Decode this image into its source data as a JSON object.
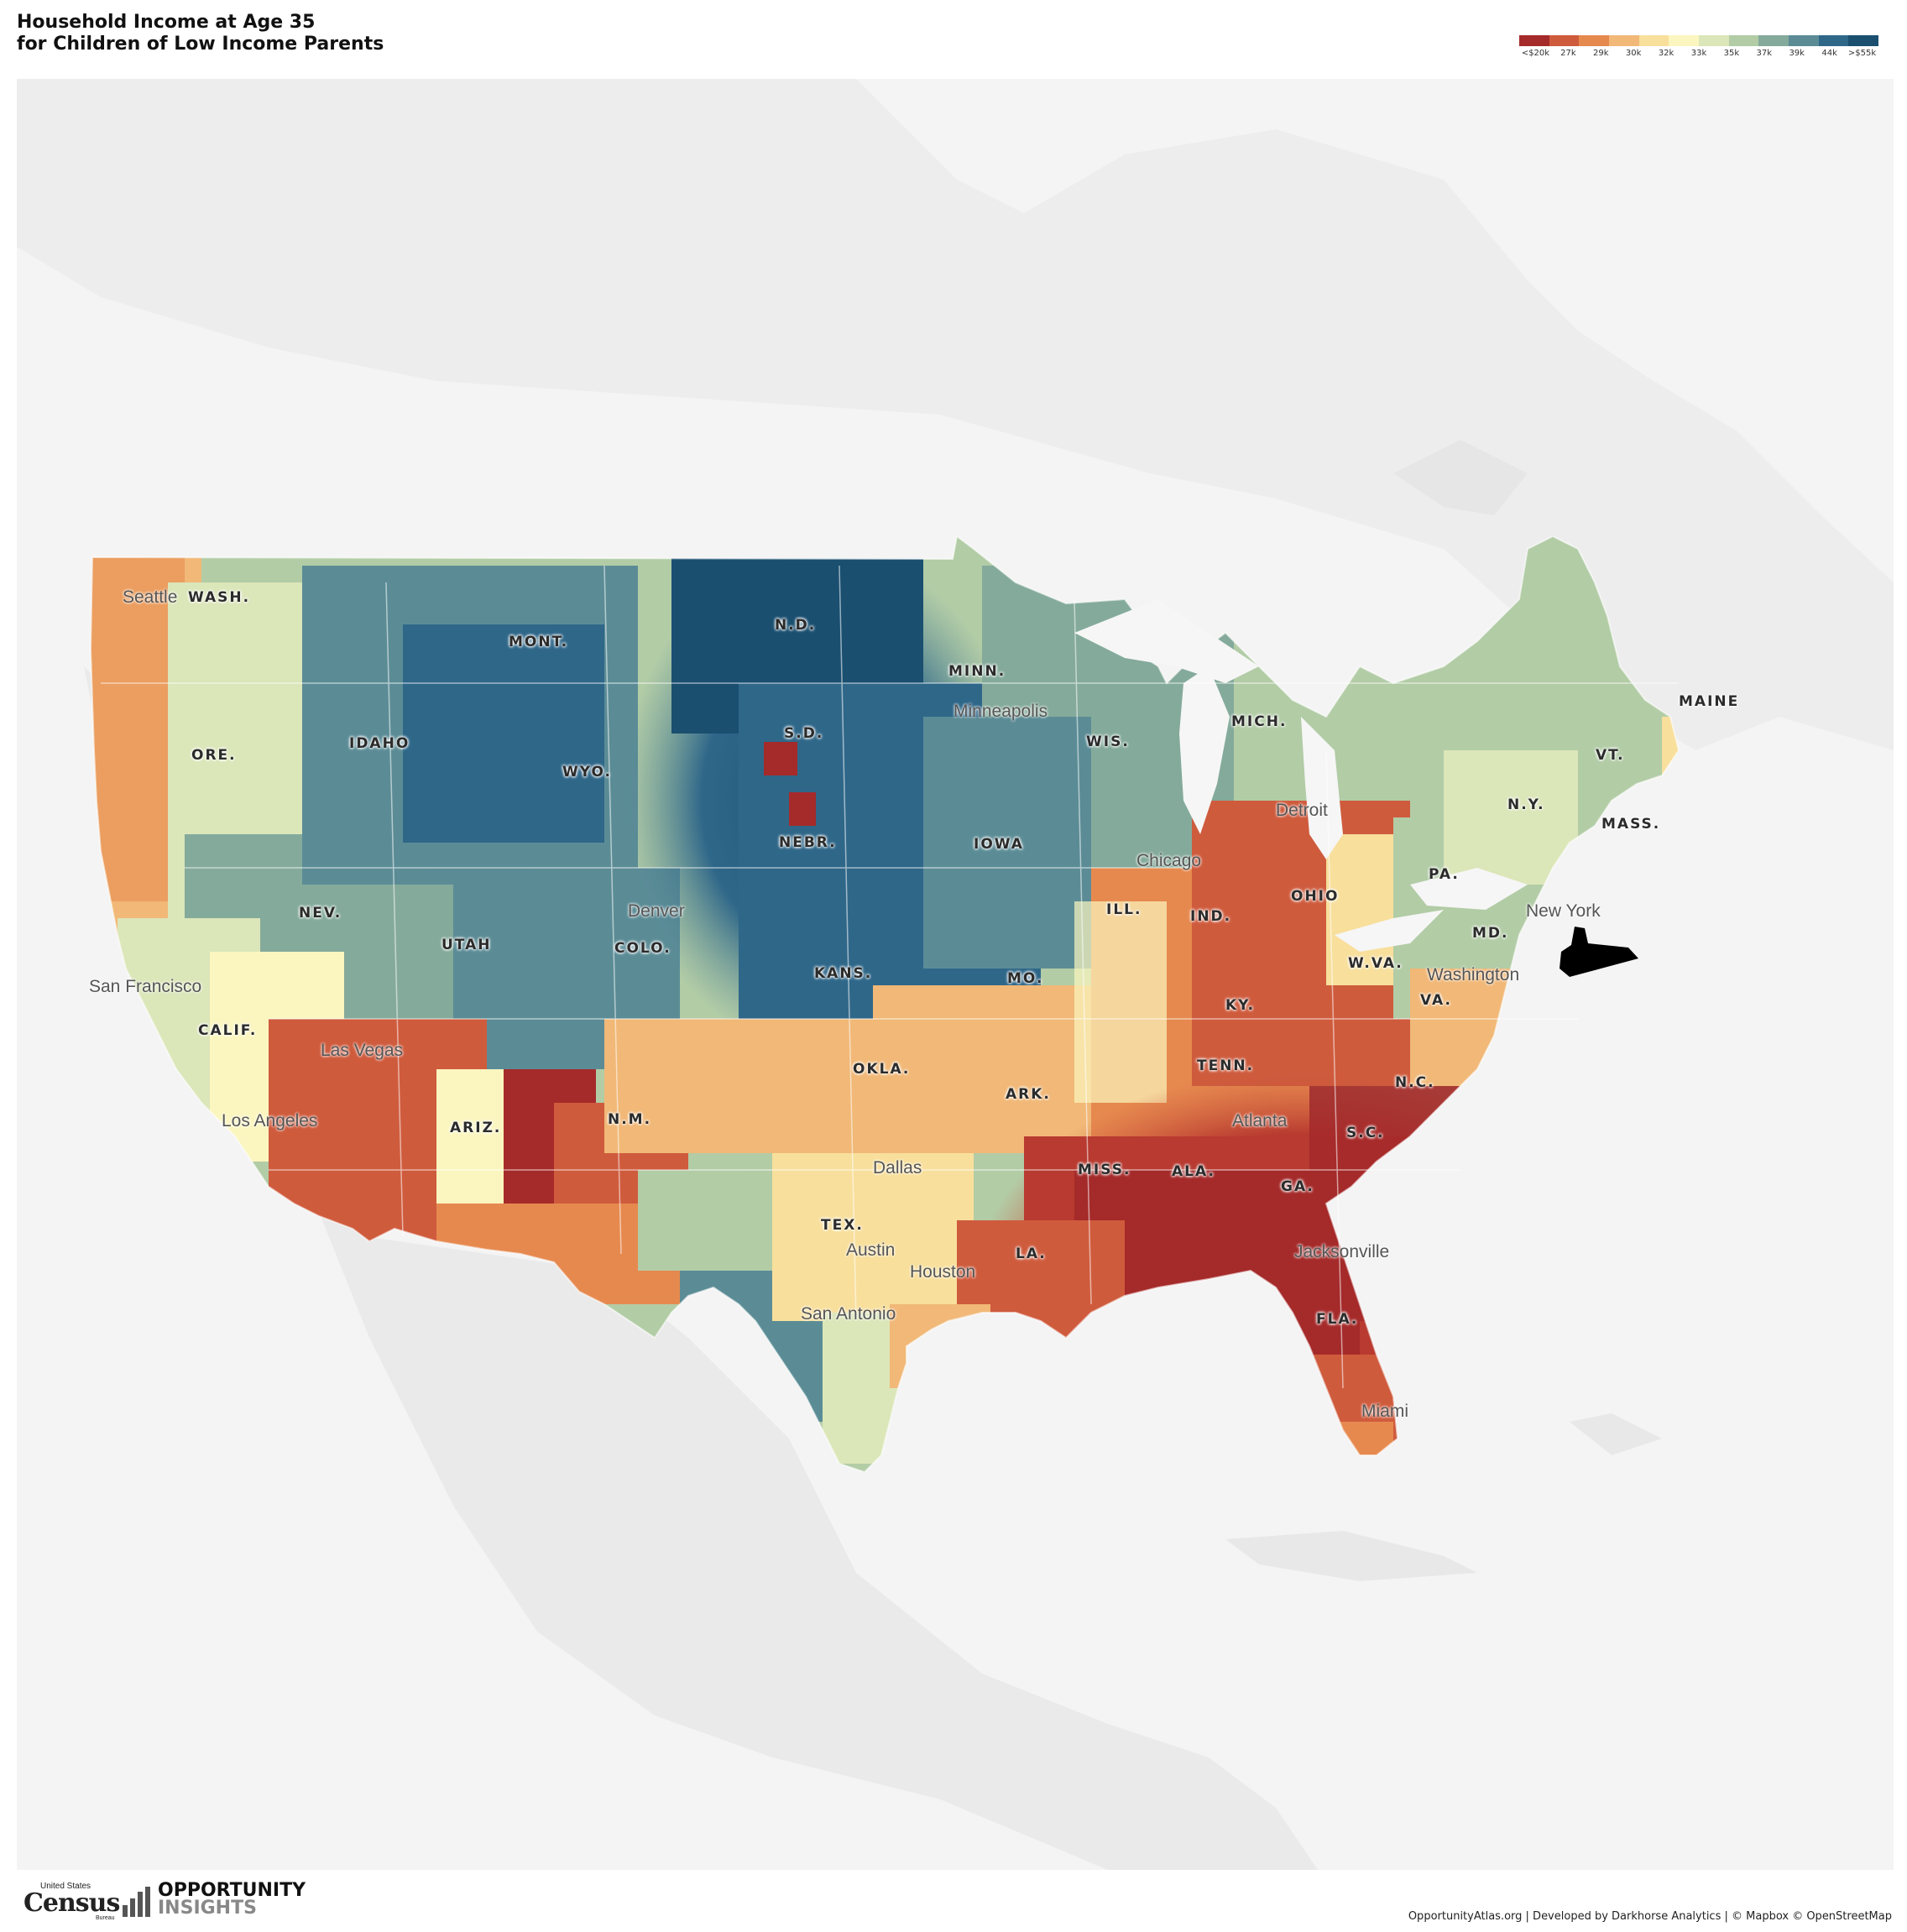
{
  "title": {
    "line1": "Household Income at Age 35",
    "line2": "for Children of Low Income Parents"
  },
  "legend": {
    "colors": [
      "#a52a2a",
      "#cf5b3d",
      "#e6894f",
      "#f1b877",
      "#f8df9c",
      "#fbf6bf",
      "#dbe6b9",
      "#b2cca6",
      "#84aa9b",
      "#5b8c96",
      "#2f6789",
      "#1a4f70"
    ],
    "labels": [
      "<$20k",
      "27k",
      "29k",
      "30k",
      "32k",
      "33k",
      "35k",
      "37k",
      "39k",
      "44k",
      ">$55k"
    ]
  },
  "map": {
    "state_labels": [
      "WASH.",
      "MONT.",
      "N.D.",
      "MINN.",
      "S.D.",
      "WIS.",
      "MICH.",
      "MAINE",
      "ORE.",
      "IDAHO",
      "WYO.",
      "VT.",
      "N.Y.",
      "MASS.",
      "NEBR.",
      "IOWA",
      "PA.",
      "ILL.",
      "IND.",
      "OHIO",
      "NEV.",
      "UTAH",
      "COLO.",
      "KANS.",
      "MO.",
      "MD.",
      "W.VA.",
      "KY.",
      "VA.",
      "CALIF.",
      "OKLA.",
      "TENN.",
      "ARK.",
      "N.C.",
      "ARIZ.",
      "N.M.",
      "S.C.",
      "MISS.",
      "ALA.",
      "GA.",
      "TEX.",
      "LA.",
      "FLA."
    ],
    "city_labels": [
      "Seattle",
      "Minneapolis",
      "Detroit",
      "Chicago",
      "Denver",
      "New York",
      "Washington",
      "San Francisco",
      "Las Vegas",
      "Los Angeles",
      "Atlanta",
      "Dallas",
      "Austin",
      "Houston",
      "San Antonio",
      "Jacksonville",
      "Miami"
    ],
    "highlight_color": "#000000"
  },
  "footer": {
    "census_top": "United States",
    "census_word": "Census",
    "census_bureau": "Bureau",
    "oi_line1": "OPPORTUNITY",
    "oi_line2": "INSIGHTS",
    "attribution": "OpportunityAtlas.org | Developed by Darkhorse Analytics | © Mapbox © OpenStreetMap"
  }
}
